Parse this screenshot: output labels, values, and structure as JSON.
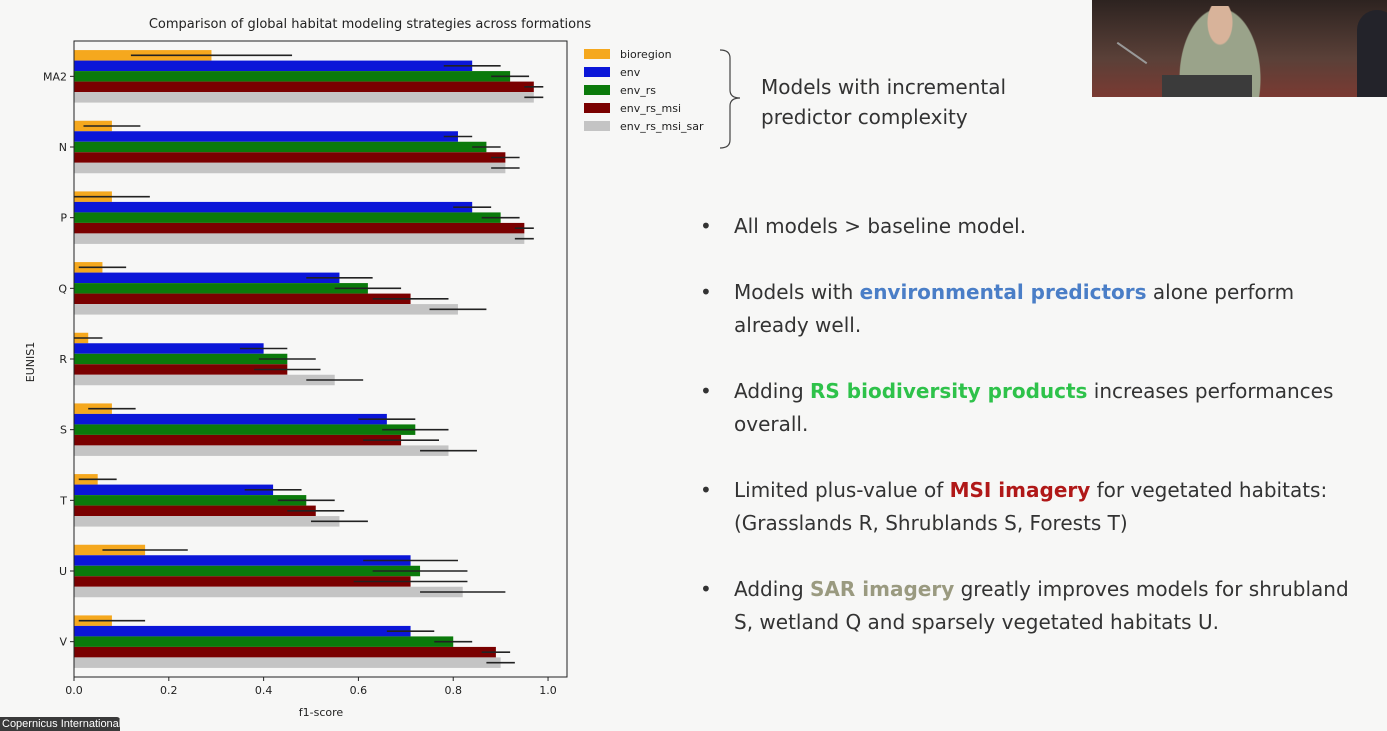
{
  "chart_data": {
    "type": "bar",
    "orientation": "horizontal",
    "title": "Comparison of global habitat modeling strategies across formations",
    "xlabel": "f1-score",
    "ylabel": "EUNIS1",
    "xlim": [
      0.0,
      1.04
    ],
    "xticks": [
      "0.0",
      "0.2",
      "0.4",
      "0.6",
      "0.8",
      "1.0"
    ],
    "xtick_values": [
      0.0,
      0.2,
      0.4,
      0.6,
      0.8,
      1.0
    ],
    "categories": [
      "MA2",
      "N",
      "P",
      "Q",
      "R",
      "S",
      "T",
      "U",
      "V"
    ],
    "legend_position": "outside right",
    "series": [
      {
        "name": "bioregion",
        "color": "#f5a81e",
        "values": [
          0.29,
          0.08,
          0.08,
          0.06,
          0.03,
          0.08,
          0.05,
          0.15,
          0.08
        ],
        "error": [
          0.17,
          0.06,
          0.08,
          0.05,
          0.03,
          0.05,
          0.04,
          0.09,
          0.07
        ]
      },
      {
        "name": "env",
        "color": "#0b16d8",
        "values": [
          0.84,
          0.81,
          0.84,
          0.56,
          0.4,
          0.66,
          0.42,
          0.71,
          0.71
        ],
        "error": [
          0.06,
          0.03,
          0.04,
          0.07,
          0.05,
          0.06,
          0.06,
          0.1,
          0.05
        ]
      },
      {
        "name": "env_rs",
        "color": "#0b7a0b",
        "values": [
          0.92,
          0.87,
          0.9,
          0.62,
          0.45,
          0.72,
          0.49,
          0.73,
          0.8
        ],
        "error": [
          0.04,
          0.03,
          0.04,
          0.07,
          0.06,
          0.07,
          0.06,
          0.1,
          0.04
        ]
      },
      {
        "name": "env_rs_msi",
        "color": "#7a0000",
        "values": [
          0.97,
          0.91,
          0.95,
          0.71,
          0.45,
          0.69,
          0.51,
          0.71,
          0.89
        ],
        "error": [
          0.02,
          0.03,
          0.02,
          0.08,
          0.07,
          0.08,
          0.06,
          0.12,
          0.03
        ]
      },
      {
        "name": "env_rs_msi_sar",
        "color": "#c4c4c4",
        "values": [
          0.97,
          0.91,
          0.95,
          0.81,
          0.55,
          0.79,
          0.56,
          0.82,
          0.9
        ],
        "error": [
          0.02,
          0.03,
          0.02,
          0.06,
          0.06,
          0.06,
          0.06,
          0.09,
          0.03
        ]
      }
    ],
    "annotation": "Models with incremental predictor complexity"
  },
  "caption": "Copernicus International",
  "bullets": [
    {
      "parts": [
        {
          "text": "All models > baseline model.",
          "style": ""
        }
      ]
    },
    {
      "parts": [
        {
          "text": "Models with ",
          "style": ""
        },
        {
          "text": "environmental predictors",
          "style": "hl-blue"
        },
        {
          "text": " alone perform already well.",
          "style": ""
        }
      ]
    },
    {
      "parts": [
        {
          "text": "Adding ",
          "style": ""
        },
        {
          "text": "RS biodiversity products",
          "style": "hl-green"
        },
        {
          "text": " increases performances overall.",
          "style": ""
        }
      ]
    },
    {
      "parts": [
        {
          "text": "Limited plus-value of ",
          "style": ""
        },
        {
          "text": "MSI imagery",
          "style": "hl-red"
        },
        {
          "text": " for vegetated habitats: (Grasslands R, Shrublands S, Forests T)",
          "style": ""
        }
      ]
    },
    {
      "parts": [
        {
          "text": "Adding ",
          "style": ""
        },
        {
          "text": "SAR imagery",
          "style": "hl-gray"
        },
        {
          "text": " greatly improves models for shrubland S, wetland Q and sparsely vegetated habitats U.",
          "style": ""
        }
      ]
    }
  ]
}
